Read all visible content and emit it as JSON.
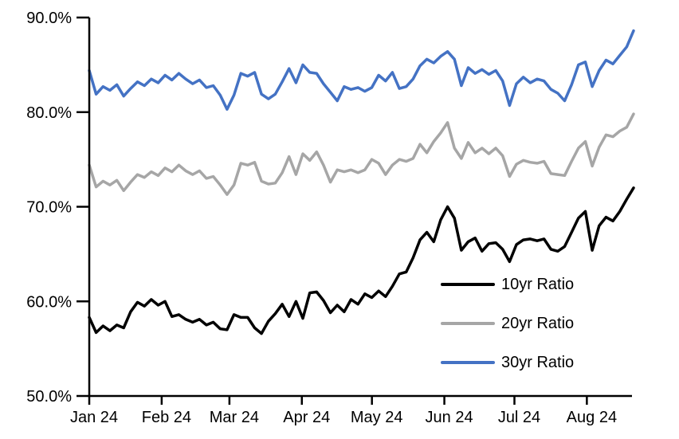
{
  "chart_data": {
    "type": "line",
    "title": "",
    "xlabel": "",
    "ylabel": "",
    "ylim": [
      50,
      90
    ],
    "grid": false,
    "legend_position": "inside-lower-right",
    "y_ticks": [
      {
        "value": 90,
        "label": "90.0%"
      },
      {
        "value": 80,
        "label": "80.0%"
      },
      {
        "value": 70,
        "label": "70.0%"
      },
      {
        "value": 60,
        "label": "60.0%"
      },
      {
        "value": 50,
        "label": "50.0%"
      }
    ],
    "x_axis": {
      "total_days": 233,
      "ticks": [
        {
          "day": 0,
          "label": "Jan 24"
        },
        {
          "day": 31,
          "label": "Feb 24"
        },
        {
          "day": 60,
          "label": "Mar 24"
        },
        {
          "day": 91,
          "label": "Apr 24"
        },
        {
          "day": 121,
          "label": "May 24"
        },
        {
          "day": 152,
          "label": "Jun 24"
        },
        {
          "day": 182,
          "label": "Jul 24"
        },
        {
          "day": 213,
          "label": "Aug 24"
        }
      ]
    },
    "series": [
      {
        "name": "10yr Ratio",
        "color": "#000000",
        "values": [
          58.3,
          56.7,
          57.4,
          56.9,
          57.5,
          57.2,
          58.9,
          59.9,
          59.5,
          60.2,
          59.6,
          60.0,
          58.4,
          58.6,
          58.1,
          57.8,
          58.1,
          57.5,
          57.8,
          57.1,
          57.0,
          58.6,
          58.3,
          58.3,
          57.2,
          56.6,
          57.9,
          58.7,
          59.7,
          58.4,
          60.0,
          58.2,
          60.9,
          61.0,
          60.1,
          58.8,
          59.6,
          58.9,
          60.2,
          59.7,
          60.8,
          60.4,
          61.1,
          60.5,
          61.6,
          62.9,
          63.1,
          64.6,
          66.5,
          67.3,
          66.3,
          68.6,
          70.0,
          68.8,
          65.4,
          66.3,
          66.7,
          65.3,
          66.1,
          66.2,
          65.5,
          64.2,
          66.0,
          66.5,
          66.6,
          66.4,
          66.6,
          65.5,
          65.3,
          65.8,
          67.3,
          68.8,
          69.5,
          65.4,
          68.0,
          68.9,
          68.5,
          69.5,
          70.8,
          72.0
        ]
      },
      {
        "name": "20yr Ratio",
        "color": "#A6A6A6",
        "values": [
          74.4,
          72.1,
          72.7,
          72.3,
          72.8,
          71.7,
          72.6,
          73.4,
          73.1,
          73.7,
          73.3,
          74.1,
          73.7,
          74.4,
          73.8,
          73.4,
          73.8,
          73.0,
          73.2,
          72.3,
          71.3,
          72.3,
          74.6,
          74.4,
          74.7,
          72.7,
          72.4,
          72.5,
          73.6,
          75.3,
          73.4,
          75.6,
          74.9,
          75.8,
          74.4,
          72.6,
          73.9,
          73.7,
          73.9,
          73.6,
          73.9,
          75.0,
          74.6,
          73.4,
          74.4,
          75.0,
          74.8,
          75.1,
          76.6,
          75.7,
          76.9,
          77.8,
          78.9,
          76.2,
          75.1,
          76.8,
          75.7,
          76.2,
          75.6,
          76.2,
          75.4,
          73.2,
          74.5,
          74.9,
          74.7,
          74.6,
          74.8,
          73.5,
          73.4,
          73.3,
          74.8,
          76.2,
          76.9,
          74.3,
          76.3,
          77.6,
          77.4,
          78.0,
          78.4,
          79.8
        ]
      },
      {
        "name": "30yr Ratio",
        "color": "#4472C4",
        "values": [
          84.4,
          81.9,
          82.7,
          82.3,
          82.9,
          81.7,
          82.5,
          83.2,
          82.8,
          83.5,
          83.1,
          83.9,
          83.4,
          84.1,
          83.5,
          83.0,
          83.4,
          82.6,
          82.8,
          81.8,
          80.3,
          81.8,
          84.1,
          83.8,
          84.2,
          81.9,
          81.4,
          81.9,
          83.2,
          84.6,
          83.1,
          85.0,
          84.2,
          84.1,
          83.0,
          82.1,
          81.2,
          82.7,
          82.4,
          82.6,
          82.2,
          82.6,
          83.9,
          83.3,
          84.2,
          82.5,
          82.7,
          83.5,
          84.9,
          85.6,
          85.2,
          85.9,
          86.4,
          85.6,
          82.8,
          84.7,
          84.1,
          84.5,
          84.0,
          84.4,
          83.3,
          80.7,
          83.0,
          83.7,
          83.1,
          83.5,
          83.3,
          82.4,
          82.0,
          81.2,
          82.9,
          85.0,
          85.3,
          82.7,
          84.4,
          85.5,
          85.1,
          86.0,
          86.9,
          88.6
        ]
      }
    ]
  }
}
